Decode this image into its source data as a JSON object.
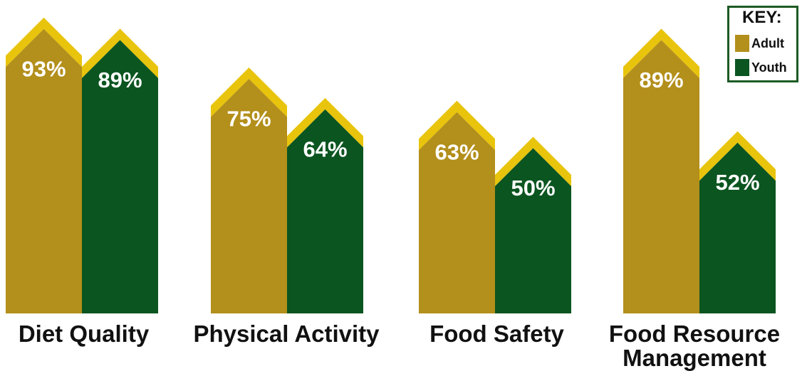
{
  "chart_data": {
    "type": "bar",
    "categories": [
      "Diet Quality",
      "Physical Activity",
      "Food Safety",
      "Food Resource\nManagement"
    ],
    "series": [
      {
        "name": "Adult",
        "values": [
          93,
          75,
          63,
          89
        ],
        "labels": [
          "93%",
          "75%",
          "63%",
          "89%"
        ]
      },
      {
        "name": "Youth",
        "values": [
          89,
          64,
          50,
          52
        ],
        "labels": [
          "89%",
          "64%",
          "50%",
          "52%"
        ]
      }
    ],
    "unit": "%",
    "legend": {
      "title": "KEY:",
      "position": "top-right"
    }
  },
  "colors": {
    "adult": "#b38f1b",
    "youth": "#0b5520",
    "cap": "#e8c40c",
    "label_text": "#ffffff",
    "legend_border": "#1d5a23"
  }
}
